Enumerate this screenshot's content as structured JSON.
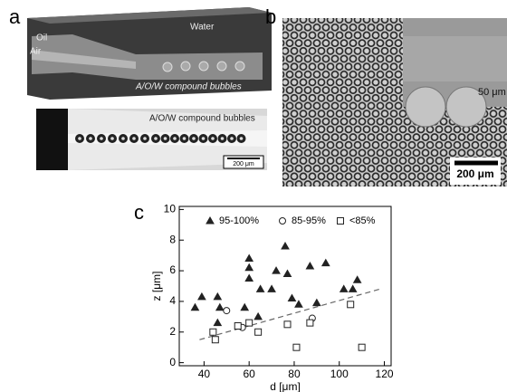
{
  "panel_a": {
    "label": "a",
    "oil": "Oil",
    "air": "Air",
    "water": "Water",
    "bubbles_top": "A/O/W compound bubbles",
    "bubbles_bottom": "A/O/W compound bubbles",
    "scale_bar": "200 μm"
  },
  "panel_b": {
    "label": "b",
    "inset_scale": "50 μm",
    "scale_bar": "200 μm"
  },
  "panel_c": {
    "label": "c"
  },
  "chart_data": {
    "type": "scatter",
    "x_label": "d [μm]",
    "y_label": "z [μm]",
    "xlim": [
      29,
      123
    ],
    "ylim": [
      -0.2,
      10.2
    ],
    "xticks": [
      40,
      60,
      80,
      100,
      120
    ],
    "yticks": [
      0,
      2,
      4,
      6,
      8,
      10
    ],
    "series": [
      {
        "name": "95-100%",
        "color": "#222222",
        "marker": "triangle",
        "filled": true,
        "x": [
          36,
          39,
          46,
          47,
          46,
          60,
          60,
          60,
          58,
          65,
          64,
          70,
          72,
          76,
          77,
          79,
          82,
          87,
          90,
          94,
          102,
          106,
          108
        ],
        "values": [
          3.6,
          4.3,
          4.3,
          3.6,
          2.6,
          6.8,
          6.2,
          5.5,
          3.6,
          4.8,
          3.0,
          4.8,
          6.0,
          7.6,
          5.8,
          4.2,
          3.8,
          6.3,
          3.9,
          6.5,
          4.8,
          4.8,
          5.4
        ]
      },
      {
        "name": "85-95%",
        "color": "#222222",
        "marker": "circle",
        "filled": false,
        "x": [
          50,
          57,
          88
        ],
        "values": [
          3.4,
          2.3,
          2.9
        ]
      },
      {
        "name": "<85%",
        "color": "#222222",
        "marker": "square",
        "filled": false,
        "x": [
          44,
          45,
          55,
          60,
          64,
          77,
          81,
          87,
          105,
          110
        ],
        "values": [
          2.0,
          1.5,
          2.4,
          2.6,
          2.0,
          2.5,
          1.0,
          2.6,
          3.8,
          1.0
        ]
      }
    ],
    "trend_line": {
      "x": [
        38,
        118
      ],
      "y": [
        1.5,
        4.8
      ],
      "color": "#666666"
    }
  }
}
